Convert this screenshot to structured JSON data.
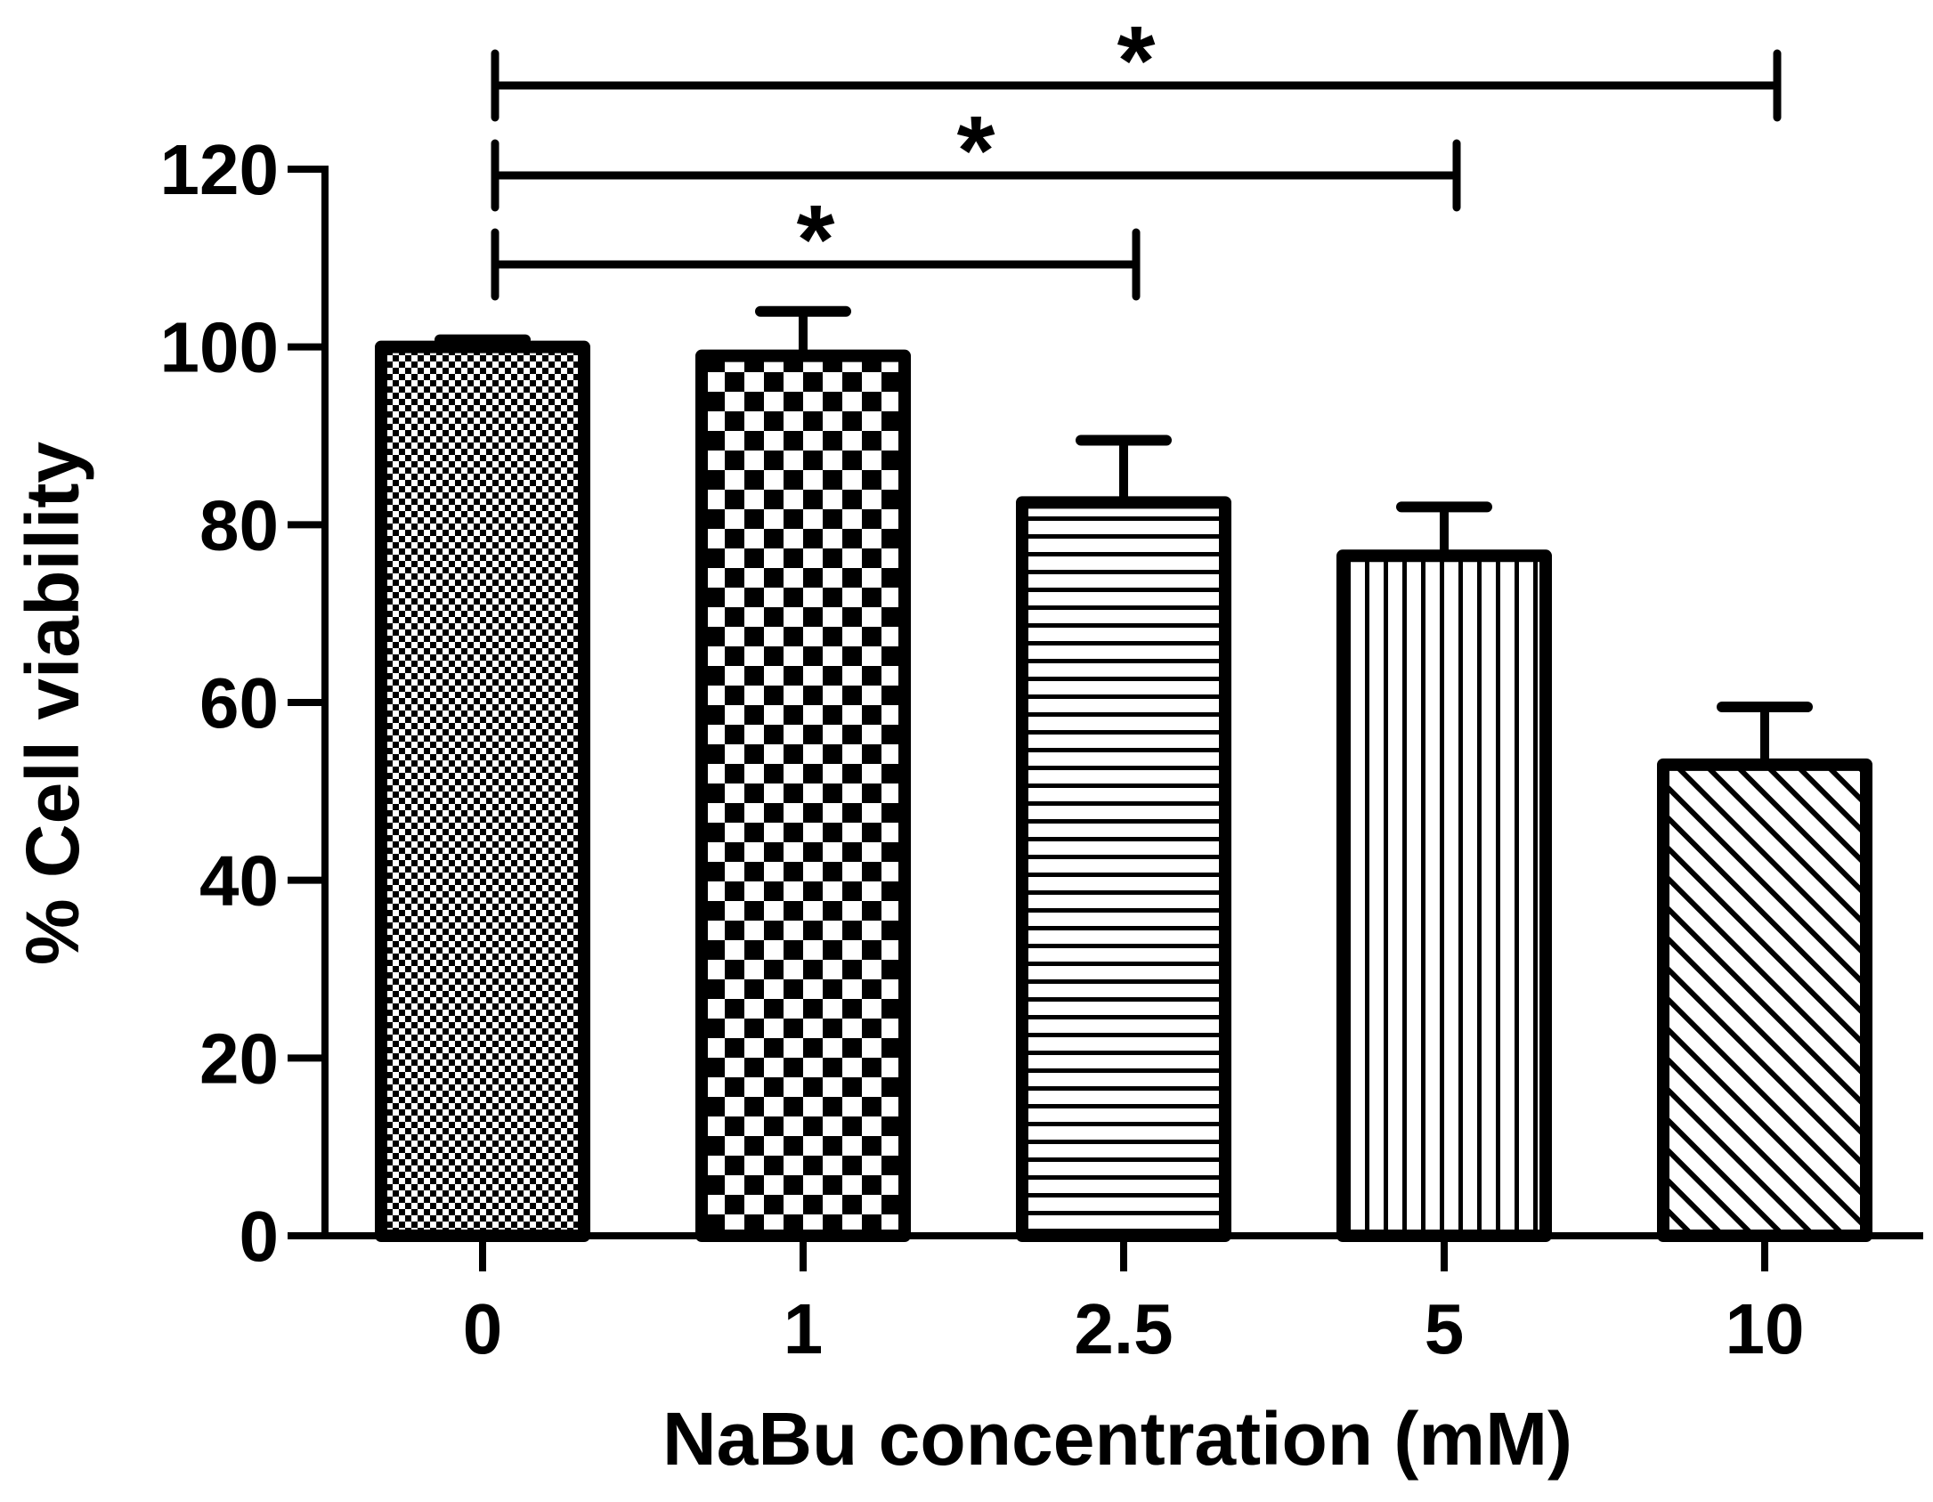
{
  "chart_data": {
    "type": "bar",
    "title": "",
    "xlabel": "NaBu concentration (mM)",
    "ylabel": "% Cell viability",
    "categories": [
      "0",
      "1",
      "2.5",
      "5",
      "10"
    ],
    "values": [
      100,
      99,
      82.5,
      76.5,
      53
    ],
    "errors": [
      0.8,
      5,
      7,
      5.5,
      6.5
    ],
    "patterns": [
      "fine-checker",
      "coarse-checker",
      "horizontal-stripes",
      "vertical-stripes",
      "diagonal-stripes"
    ],
    "ylim": [
      0,
      120
    ],
    "yticks": [
      "0",
      "20",
      "40",
      "60",
      "80",
      "100",
      "120"
    ],
    "grid": false,
    "legend": "none",
    "significance": [
      {
        "from": "0",
        "to": "2.5",
        "label": "*"
      },
      {
        "from": "0",
        "to": "5",
        "label": "*"
      },
      {
        "from": "0",
        "to": "10",
        "label": "*"
      }
    ]
  },
  "colors": {
    "ink": "#000000",
    "background": "#ffffff"
  }
}
